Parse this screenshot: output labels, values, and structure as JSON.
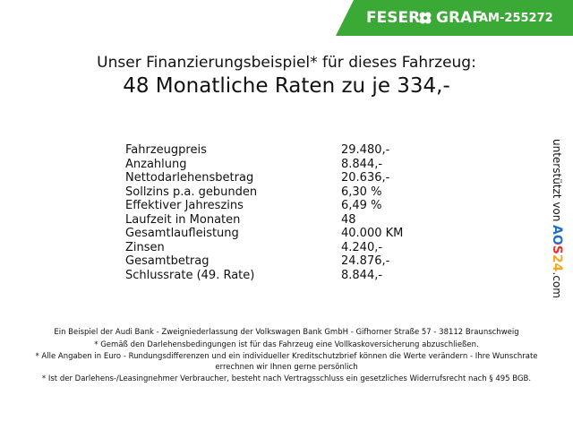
{
  "header": {
    "brand_left": "FESER",
    "brand_right": "GRAF",
    "code": "AM-255272"
  },
  "heading": {
    "line1": "Unser Finanzierungsbeispiel* für dieses Fahrzeug:",
    "line2": "48 Monatliche Raten zu je 334,-"
  },
  "table": {
    "rows": [
      [
        "Fahrzeugpreis",
        "29.480,-"
      ],
      [
        "Anzahlung",
        "8.844,-"
      ],
      [
        "Nettodarlehensbetrag",
        "20.636,-"
      ],
      [
        "Sollzins p.a. gebunden",
        "6,30 %"
      ],
      [
        "Effektiver Jahreszins",
        "6,49 %"
      ],
      [
        "Laufzeit in Monaten",
        "48"
      ],
      [
        "Gesamtlaufleistung",
        "40.000 KM"
      ],
      [
        "Zinsen",
        "4.240,-"
      ],
      [
        "Gesamtbetrag",
        "24.876,-"
      ],
      [
        "Schlussrate (49. Rate)",
        "8.844,-"
      ]
    ]
  },
  "sponsor": {
    "prefix": "unterstützt von",
    "brand": "AOS24",
    "suffix": ".com"
  },
  "footer": {
    "notes": [
      "Ein Beispiel der Audi Bank - Zweigniederlassung der Volkswagen Bank GmbH - Gifhorner Straße 57 - 38112 Braunschweig",
      "* Gemäß den Darlehensbedingungen ist für das Fahrzeug eine Vollkaskoversicherung abzuschließen.",
      "* Alle Angaben in Euro - Rundungsdifferenzen und ein individueller Kreditschutzbrief können die Werte verändern - Ihre Wunschrate errechnen wir Ihnen gerne persönlich",
      "* Ist der Darlehens-/Leasingnehmer Verbraucher, besteht nach Vertragsschluss ein gesetzliches Widerrufsrecht nach § 495 BGB."
    ]
  }
}
